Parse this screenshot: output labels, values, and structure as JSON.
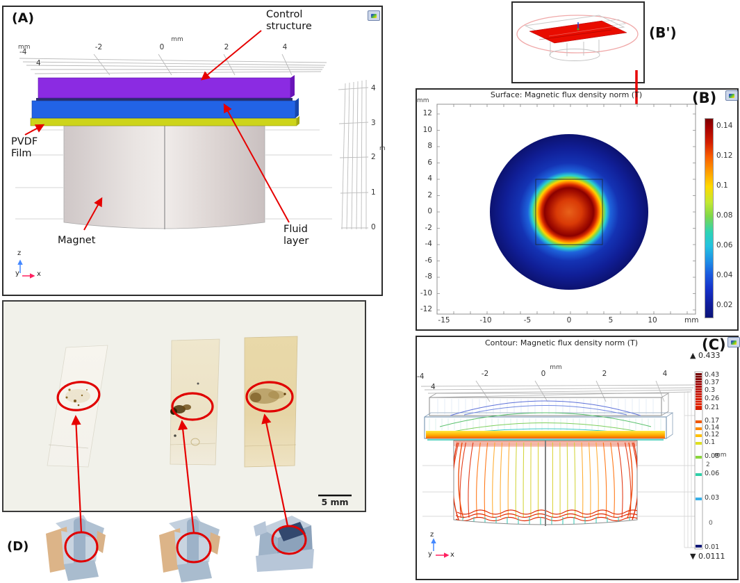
{
  "colors": {
    "annotation_red": "#e60000",
    "control_structure": "#8b2be2",
    "fluid_layer": "#2263e6",
    "pvdf_film": "#cdd41a",
    "magnet_gray": "#d9d2d2",
    "plate_red": "#e80c00",
    "colorbar_top_red": "#7a0000",
    "colorbar_bottom_navy": "#0c1478"
  },
  "panelA": {
    "label": "(A)",
    "camera_icon": "snapshot-icon",
    "top_axis": {
      "unit": "mm",
      "ticks": [
        "-2",
        "0",
        "2",
        "4"
      ],
      "left_unit": "mm",
      "left_label": "-4",
      "below_left": "4"
    },
    "right_axis": {
      "ticks": [
        "4",
        "3",
        "2",
        "1",
        "0"
      ],
      "unit": "m"
    },
    "annotations": {
      "control": "Control\nstructure",
      "pvdf": "PVDF\nFilm",
      "magnet": "Magnet",
      "fluid": "Fluid\nlayer"
    },
    "triad": {
      "z": "z",
      "y": "y",
      "x": "x"
    }
  },
  "panelBprime": {
    "label": "(B')"
  },
  "panelB": {
    "label": "(B)",
    "title": "Surface: Magnetic flux density norm (T)",
    "left_unit": "mm",
    "bottom_unit": "mm",
    "y_ticks": [
      "12",
      "10",
      "8",
      "6",
      "4",
      "2",
      "0",
      "-2",
      "-4",
      "-6",
      "-8",
      "-10",
      "-12"
    ],
    "x_ticks": [
      "-15",
      "-10",
      "-5",
      "0",
      "5",
      "10"
    ],
    "colorbar_ticks": [
      "0.14",
      "0.12",
      "0.1",
      "0.08",
      "0.06",
      "0.04",
      "0.02"
    ]
  },
  "panelC": {
    "label": "(C)",
    "title": "Contour: Magnetic flux density norm (T)",
    "max_label": "▲ 0.433",
    "min_label": "▼ 0.0111",
    "top_axis": {
      "unit": "mm",
      "ticks": [
        "-2",
        "0",
        "2",
        "4"
      ],
      "left_label": "-4",
      "below_left": "4"
    },
    "colorbar_ticks": [
      "0.43",
      "0.37",
      "0.3",
      "0.26",
      "0.21",
      "0.17",
      "0.14",
      "0.12",
      "0.1",
      "0.08",
      "0.06",
      "0.03",
      "0.01"
    ],
    "bg_axis": {
      "unit": "mm",
      "tick_2": "2",
      "tick_0": "0"
    },
    "triad": {
      "z": "z",
      "y": "y",
      "x": "x"
    }
  },
  "panelD": {
    "label": "(D)",
    "scale_bar": "5 mm"
  },
  "chart_data": [
    {
      "type": "heatmap",
      "panel": "B",
      "title": "Surface: Magnetic flux density norm (T)",
      "xlabel": "mm",
      "ylabel": "mm",
      "x_ticks": [
        -15,
        -10,
        -5,
        0,
        5,
        10
      ],
      "y_ticks": [
        12,
        10,
        8,
        6,
        4,
        2,
        0,
        -2,
        -4,
        -6,
        -8,
        -10,
        -12
      ],
      "colorbar_range": [
        0.02,
        0.14
      ],
      "features": "circular field region radius ~9.5 mm centered at origin, blue (~0.02 T) at rim, red-orange core radius ~3.5 mm (~0.13-0.148 T) with dark-red ring, square outline from -4 to 4 mm"
    },
    {
      "type": "contour",
      "panel": "C",
      "title": "Contour: Magnetic flux density norm (T)",
      "xlabel": "mm",
      "x_ticks": [
        -4,
        -2,
        0,
        2,
        4
      ],
      "max_value": 0.433,
      "min_value": 0.0111,
      "contour_levels": [
        0.43,
        0.37,
        0.3,
        0.26,
        0.21,
        0.17,
        0.14,
        0.12,
        0.1,
        0.08,
        0.06,
        0.03,
        0.01
      ],
      "features": "wireframe of control structure and fluid layer with blue/green flux contours, bright yellow-orange band at PVDF film, dense red/orange vertical contours over magnet cylinder"
    }
  ]
}
